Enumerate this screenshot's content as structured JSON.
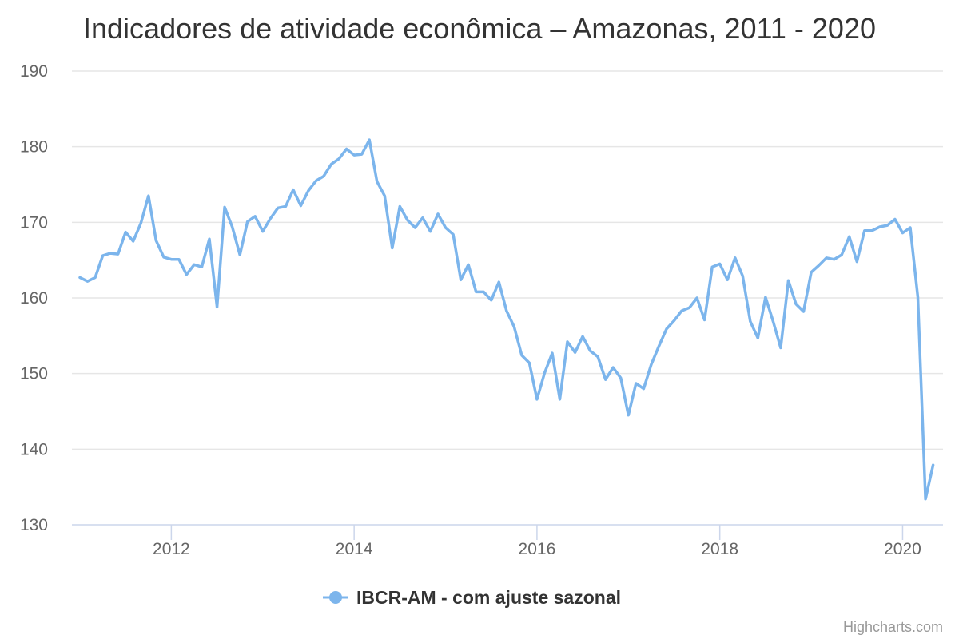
{
  "chart_data": {
    "type": "line",
    "title": "Indicadores de atividade econômica – Amazonas, 2011 - 2020",
    "ylim": [
      130,
      190
    ],
    "yticks": [
      "130",
      "140",
      "150",
      "160",
      "170",
      "180",
      "190"
    ],
    "xticks": [
      "2012",
      "2014",
      "2016",
      "2018",
      "2020"
    ],
    "grid": true,
    "legend_position": "bottom-center",
    "credits": "Highcharts.com",
    "colors": {
      "series": "#7cb5ec",
      "grid": "#e6e6e6",
      "axis": "#ccd6eb"
    },
    "series": [
      {
        "name": "IBCR-AM - com ajuste sazonal",
        "x": [
          "2011-01",
          "2011-02",
          "2011-03",
          "2011-04",
          "2011-05",
          "2011-06",
          "2011-07",
          "2011-08",
          "2011-09",
          "2011-10",
          "2011-11",
          "2011-12",
          "2012-01",
          "2012-02",
          "2012-03",
          "2012-04",
          "2012-05",
          "2012-06",
          "2012-07",
          "2012-08",
          "2012-09",
          "2012-10",
          "2012-11",
          "2012-12",
          "2013-01",
          "2013-02",
          "2013-03",
          "2013-04",
          "2013-05",
          "2013-06",
          "2013-07",
          "2013-08",
          "2013-09",
          "2013-10",
          "2013-11",
          "2013-12",
          "2014-01",
          "2014-02",
          "2014-03",
          "2014-04",
          "2014-05",
          "2014-06",
          "2014-07",
          "2014-08",
          "2014-09",
          "2014-10",
          "2014-11",
          "2014-12",
          "2015-01",
          "2015-02",
          "2015-03",
          "2015-04",
          "2015-05",
          "2015-06",
          "2015-07",
          "2015-08",
          "2015-09",
          "2015-10",
          "2015-11",
          "2015-12",
          "2016-01",
          "2016-02",
          "2016-03",
          "2016-04",
          "2016-05",
          "2016-06",
          "2016-07",
          "2016-08",
          "2016-09",
          "2016-10",
          "2016-11",
          "2016-12",
          "2017-01",
          "2017-02",
          "2017-03",
          "2017-04",
          "2017-05",
          "2017-06",
          "2017-07",
          "2017-08",
          "2017-09",
          "2017-10",
          "2017-11",
          "2017-12",
          "2018-01",
          "2018-02",
          "2018-03",
          "2018-04",
          "2018-05",
          "2018-06",
          "2018-07",
          "2018-08",
          "2018-09",
          "2018-10",
          "2018-11",
          "2018-12",
          "2019-01",
          "2019-02",
          "2019-03",
          "2019-04",
          "2019-05",
          "2019-06",
          "2019-07",
          "2019-08",
          "2019-09",
          "2019-10",
          "2019-11",
          "2019-12",
          "2020-01",
          "2020-02",
          "2020-03",
          "2020-04",
          "2020-05"
        ],
        "values": [
          162.7,
          162.2,
          162.7,
          165.6,
          165.9,
          165.8,
          168.7,
          167.5,
          169.9,
          173.5,
          167.6,
          165.4,
          165.1,
          165.1,
          163.1,
          164.4,
          164.1,
          167.8,
          158.8,
          172.0,
          169.4,
          165.7,
          170.1,
          170.8,
          168.8,
          170.5,
          171.9,
          172.1,
          174.3,
          172.2,
          174.2,
          175.5,
          176.1,
          177.7,
          178.4,
          179.7,
          178.9,
          179.0,
          180.9,
          175.4,
          173.5,
          166.6,
          172.1,
          170.3,
          169.3,
          170.6,
          168.8,
          171.1,
          169.3,
          168.4,
          162.4,
          164.4,
          160.8,
          160.8,
          159.7,
          162.1,
          158.3,
          156.2,
          152.4,
          151.4,
          146.6,
          150.1,
          152.7,
          146.6,
          154.2,
          152.8,
          154.9,
          153.0,
          152.2,
          149.2,
          150.8,
          149.4,
          144.5,
          148.7,
          148.0,
          151.2,
          153.6,
          155.9,
          157.0,
          158.3,
          158.7,
          160.0,
          157.1,
          164.1,
          164.5,
          162.4,
          165.3,
          162.9,
          156.9,
          154.7,
          160.1,
          156.9,
          153.4,
          162.3,
          159.2,
          158.2,
          163.4,
          164.3,
          165.3,
          165.1,
          165.7,
          168.1,
          164.8,
          168.9,
          168.9,
          169.4,
          169.6,
          170.4,
          168.6,
          169.3,
          160.1,
          133.4,
          137.9
        ]
      }
    ]
  }
}
